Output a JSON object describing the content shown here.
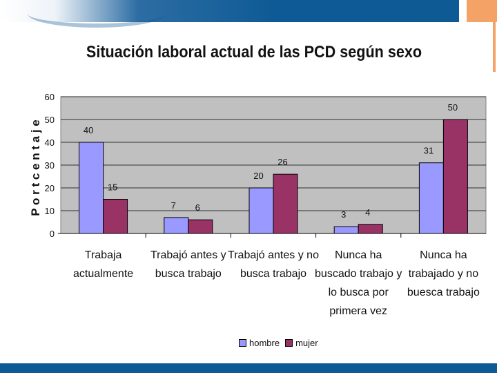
{
  "slide": {
    "title": "Situación laboral actual de las PCD según sexo"
  },
  "chart_data": {
    "type": "bar",
    "title": "Situación laboral actual de las PCD según sexo",
    "xlabel": "",
    "ylabel": "P o r t c e n t a j e",
    "ylim": [
      0,
      60
    ],
    "yticks": [
      "0",
      "10",
      "20",
      "30",
      "40",
      "50",
      "60"
    ],
    "grid": true,
    "legend_position": "bottom",
    "categories": [
      [
        "Trabaja",
        "actualmente"
      ],
      [
        "Trabajó antes y",
        "busca trabajo"
      ],
      [
        "Trabajó antes y no",
        "busca trabajo"
      ],
      [
        "Nunca ha",
        "buscado trabajo y",
        "lo busca por",
        "primera vez"
      ],
      [
        "Nunca ha",
        "trabajado y no",
        "buesca trabajo"
      ]
    ],
    "series": [
      {
        "name": "hombre",
        "color": "#9999ff",
        "values": [
          40,
          7,
          20,
          3,
          31
        ]
      },
      {
        "name": "mujer",
        "color": "#993366",
        "values": [
          15,
          6,
          26,
          4,
          50
        ]
      }
    ]
  }
}
